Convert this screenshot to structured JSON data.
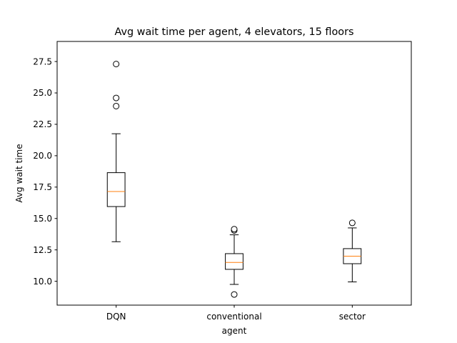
{
  "chart_data": {
    "type": "box",
    "title": "Avg wait time per agent, 4 elevators, 15 floors",
    "xlabel": "agent",
    "ylabel": "Avg wait time",
    "ylim": [
      8.1,
      29.1
    ],
    "yticks": [
      "10.0",
      "12.5",
      "15.0",
      "17.5",
      "20.0",
      "22.5",
      "25.0",
      "27.5"
    ],
    "ytick_values": [
      10.0,
      12.5,
      15.0,
      17.5,
      20.0,
      22.5,
      25.0,
      27.5
    ],
    "grid": false,
    "categories": [
      "DQN",
      "conventional",
      "sector"
    ],
    "boxes": [
      {
        "name": "DQN",
        "whisker_low": 13.15,
        "q1": 15.95,
        "median": 17.15,
        "q3": 18.65,
        "whisker_high": 21.75,
        "outliers": [
          23.95,
          24.6,
          27.3
        ]
      },
      {
        "name": "conventional",
        "whisker_low": 9.75,
        "q1": 10.95,
        "median": 11.5,
        "q3": 12.2,
        "whisker_high": 13.7,
        "outliers": [
          8.95,
          14.05,
          14.15
        ]
      },
      {
        "name": "sector",
        "whisker_low": 9.95,
        "q1": 11.4,
        "median": 12.0,
        "q3": 12.6,
        "whisker_high": 14.25,
        "outliers": [
          14.65
        ]
      }
    ],
    "colors": {
      "box": "#000000",
      "median": "#ff7f0e",
      "outlier_face": "#ffffff"
    }
  }
}
